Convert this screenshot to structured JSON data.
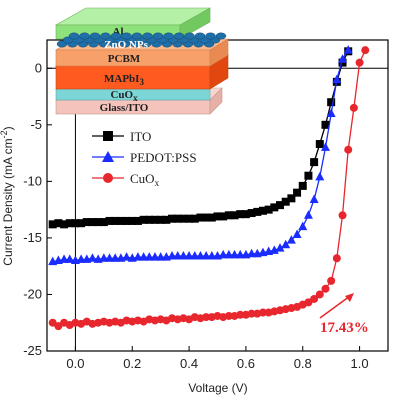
{
  "chart_data": {
    "type": "line",
    "xlabel": "Voltage (V)",
    "ylabel_main": "Current Density (mA cm",
    "ylabel_sup": "-2",
    "ylabel_end": ")",
    "xlim": [
      -0.1,
      1.1
    ],
    "ylim": [
      -25,
      2.5
    ],
    "xticks": [
      0.0,
      0.2,
      0.4,
      0.6,
      0.8,
      1.0
    ],
    "xtick_labels": [
      "0.0",
      "0.2",
      "0.4",
      "0.6",
      "0.8",
      "1.0"
    ],
    "yticks": [
      0,
      -5,
      -10,
      -15,
      -20,
      -25
    ],
    "ytick_labels": [
      "0",
      "-5",
      "-10",
      "-15",
      "-20",
      "-25"
    ],
    "legend_position": "center-left",
    "series": [
      {
        "name": "ITO",
        "color": "#000000",
        "marker": "square",
        "x": [
          -0.08,
          -0.06,
          -0.04,
          -0.02,
          0.0,
          0.02,
          0.04,
          0.06,
          0.08,
          0.1,
          0.12,
          0.14,
          0.16,
          0.18,
          0.2,
          0.22,
          0.24,
          0.26,
          0.28,
          0.3,
          0.32,
          0.34,
          0.36,
          0.38,
          0.4,
          0.42,
          0.44,
          0.46,
          0.48,
          0.5,
          0.52,
          0.54,
          0.56,
          0.58,
          0.6,
          0.62,
          0.64,
          0.66,
          0.68,
          0.7,
          0.72,
          0.74,
          0.76,
          0.78,
          0.8,
          0.82,
          0.84,
          0.86,
          0.88,
          0.9,
          0.92,
          0.94,
          0.96
        ],
        "y": [
          -13.8,
          -13.7,
          -13.8,
          -13.7,
          -13.7,
          -13.7,
          -13.6,
          -13.6,
          -13.6,
          -13.6,
          -13.5,
          -13.5,
          -13.5,
          -13.5,
          -13.5,
          -13.5,
          -13.4,
          -13.4,
          -13.4,
          -13.4,
          -13.4,
          -13.3,
          -13.3,
          -13.3,
          -13.3,
          -13.3,
          -13.2,
          -13.2,
          -13.2,
          -13.1,
          -13.1,
          -13.0,
          -13.0,
          -12.9,
          -12.9,
          -12.8,
          -12.7,
          -12.6,
          -12.5,
          -12.3,
          -12.1,
          -11.8,
          -11.5,
          -11.0,
          -10.4,
          -9.5,
          -8.3,
          -6.7,
          -5.0,
          -3.0,
          -1.2,
          0.5,
          1.5
        ]
      },
      {
        "name": "PEDOT:PSS",
        "color": "#1a2cff",
        "marker": "triangle",
        "x": [
          -0.08,
          -0.06,
          -0.04,
          -0.02,
          0.0,
          0.02,
          0.04,
          0.06,
          0.08,
          0.1,
          0.12,
          0.14,
          0.16,
          0.18,
          0.2,
          0.22,
          0.24,
          0.26,
          0.28,
          0.3,
          0.32,
          0.34,
          0.36,
          0.38,
          0.4,
          0.42,
          0.44,
          0.46,
          0.48,
          0.5,
          0.52,
          0.54,
          0.56,
          0.58,
          0.6,
          0.62,
          0.64,
          0.66,
          0.68,
          0.7,
          0.72,
          0.74,
          0.76,
          0.78,
          0.8,
          0.82,
          0.84,
          0.86,
          0.88,
          0.9,
          0.92,
          0.94,
          0.96
        ],
        "y": [
          -17.1,
          -17.0,
          -16.9,
          -16.9,
          -17.0,
          -16.9,
          -16.9,
          -16.8,
          -16.9,
          -16.8,
          -16.8,
          -16.8,
          -16.8,
          -16.7,
          -16.8,
          -16.7,
          -16.7,
          -16.7,
          -16.7,
          -16.7,
          -16.7,
          -16.6,
          -16.6,
          -16.6,
          -16.6,
          -16.6,
          -16.6,
          -16.6,
          -16.6,
          -16.6,
          -16.5,
          -16.5,
          -16.5,
          -16.5,
          -16.5,
          -16.4,
          -16.4,
          -16.3,
          -16.2,
          -16.1,
          -15.9,
          -15.6,
          -15.2,
          -14.7,
          -14.0,
          -13.0,
          -11.6,
          -9.6,
          -7.0,
          -4.0,
          -1.0,
          0.8,
          1.6
        ]
      },
      {
        "name": "CuO",
        "name_sub": "x",
        "color": "#e8262d",
        "marker": "circle",
        "x": [
          -0.08,
          -0.06,
          -0.04,
          -0.02,
          0.0,
          0.02,
          0.04,
          0.06,
          0.08,
          0.1,
          0.12,
          0.14,
          0.16,
          0.18,
          0.2,
          0.22,
          0.24,
          0.26,
          0.28,
          0.3,
          0.32,
          0.34,
          0.36,
          0.38,
          0.4,
          0.42,
          0.44,
          0.46,
          0.48,
          0.5,
          0.52,
          0.54,
          0.56,
          0.58,
          0.6,
          0.62,
          0.64,
          0.66,
          0.68,
          0.7,
          0.72,
          0.74,
          0.76,
          0.78,
          0.8,
          0.82,
          0.84,
          0.86,
          0.88,
          0.9,
          0.92,
          0.94,
          0.96,
          0.98,
          1.0,
          1.02
        ],
        "y": [
          -22.5,
          -22.8,
          -22.5,
          -22.7,
          -22.5,
          -22.6,
          -22.4,
          -22.6,
          -22.5,
          -22.4,
          -22.5,
          -22.4,
          -22.5,
          -22.3,
          -22.4,
          -22.3,
          -22.4,
          -22.2,
          -22.3,
          -22.2,
          -22.3,
          -22.1,
          -22.2,
          -22.1,
          -22.2,
          -22.0,
          -22.1,
          -22.0,
          -22.0,
          -21.9,
          -22.0,
          -21.9,
          -21.9,
          -21.8,
          -21.8,
          -21.7,
          -21.7,
          -21.6,
          -21.6,
          -21.5,
          -21.4,
          -21.3,
          -21.2,
          -21.1,
          -20.9,
          -20.7,
          -20.4,
          -20.0,
          -19.5,
          -18.8,
          -16.8,
          -13.0,
          -7.2,
          -3.5,
          0.5,
          1.6
        ]
      }
    ],
    "annotation": "17.43%"
  },
  "inset": {
    "layers": [
      {
        "label": "Al"
      },
      {
        "label": "ZnO NPs"
      },
      {
        "label": "PCBM"
      },
      {
        "label": "MAPbI",
        "sub": "3"
      },
      {
        "label": "CuO",
        "sub": "x"
      },
      {
        "label": "Glass/ITO"
      }
    ]
  },
  "colors": {
    "al": "#8ee27b",
    "zno_sphere": "#1f6fa8",
    "pcbm": "#f7a06a",
    "mapbi3": "#ff5a1f",
    "cuox": "#7cd6d8",
    "glass": "#f4c3bb"
  }
}
